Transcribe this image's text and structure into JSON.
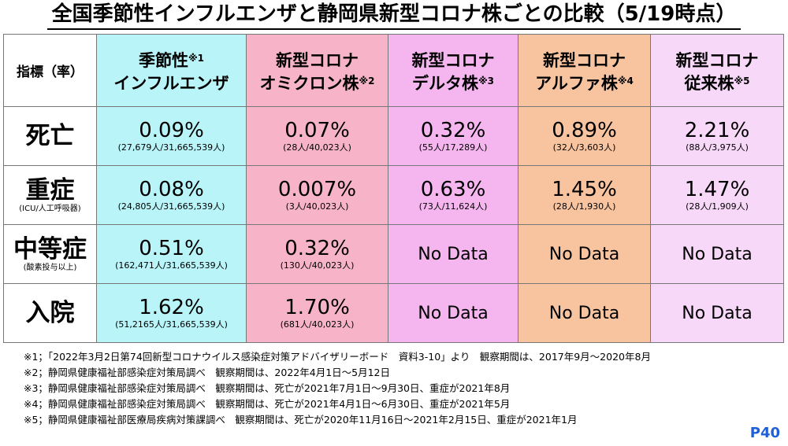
{
  "title": "全国季節性インフルエンザと静岡県新型コロナ株ごとの比較（5/19時点）",
  "colors": {
    "influenza": "#b8f4f8",
    "omicron": "#f7b4c8",
    "delta": "#f5b6f0",
    "alpha": "#f8c4a0",
    "conventional": "#f8d8f8",
    "header_white": "#ffffff",
    "page_number": "#1f5fd8"
  },
  "table": {
    "corner": "指標（率）",
    "columns": [
      {
        "line1": "季節性",
        "sup1": "※1",
        "line2": "インフルエンザ",
        "sup2": ""
      },
      {
        "line1": "新型コロナ",
        "sup1": "",
        "line2": "オミクロン株",
        "sup2": "※2"
      },
      {
        "line1": "新型コロナ",
        "sup1": "",
        "line2": "デルタ株",
        "sup2": "※3"
      },
      {
        "line1": "新型コロナ",
        "sup1": "",
        "line2": "アルファ株",
        "sup2": "※4"
      },
      {
        "line1": "新型コロナ",
        "sup1": "",
        "line2": "従来株",
        "sup2": "※5"
      }
    ],
    "rows": [
      {
        "label": "死亡",
        "sublabel": "",
        "cells": [
          {
            "value": "0.09%",
            "detail": "(27,679人/31,665,539人)"
          },
          {
            "value": "0.07%",
            "detail": "(28人/40,023人)"
          },
          {
            "value": "0.32%",
            "detail": "(55人/17,289人)"
          },
          {
            "value": "0.89%",
            "detail": "(32人/3,603人)"
          },
          {
            "value": "2.21%",
            "detail": "(88人/3,975人)"
          }
        ]
      },
      {
        "label": "重症",
        "sublabel": "(ICU/人工呼吸器)",
        "cells": [
          {
            "value": "0.08%",
            "detail": "(24,805人/31,665,539人)"
          },
          {
            "value": "0.007%",
            "detail": "(3人/40,023人)"
          },
          {
            "value": "0.63%",
            "detail": "(73人/11,624人)"
          },
          {
            "value": "1.45%",
            "detail": "(28人/1,930人)"
          },
          {
            "value": "1.47%",
            "detail": "(28人/1,909人)"
          }
        ]
      },
      {
        "label": "中等症",
        "sublabel": "(酸素投与以上)",
        "cells": [
          {
            "value": "0.51%",
            "detail": "(162,471人/31,665,539人)"
          },
          {
            "value": "0.32%",
            "detail": "(130人/40,023人)"
          },
          {
            "value": "No Data",
            "detail": ""
          },
          {
            "value": "No Data",
            "detail": ""
          },
          {
            "value": "No Data",
            "detail": ""
          }
        ]
      },
      {
        "label": "入院",
        "sublabel": "",
        "cells": [
          {
            "value": "1.62%",
            "detail": "(51,2165人/31,665,539人)"
          },
          {
            "value": "1.70%",
            "detail": "(681人/40,023人)"
          },
          {
            "value": "No Data",
            "detail": ""
          },
          {
            "value": "No Data",
            "detail": ""
          },
          {
            "value": "No Data",
            "detail": ""
          }
        ]
      }
    ]
  },
  "notes": [
    "※1；「2022年3月2日第74回新型コロナウイルス感染症対策アドバイザリーボード　資料3-10」より　観察期間は、2017年9月～2020年8月",
    "※2；静岡県健康福祉部感染症対策局調べ　観察期間は、2022年4月1日～5月12日",
    "※3；静岡県健康福祉部感染症対策局調べ　観察期間は、死亡が2021年7月1日～9月30日、重症が2021年8月",
    "※4；静岡県健康福祉部感染症対策局調べ　観察期間は、死亡が2021年4月1日～6月30日、重症が2021年5月",
    "※5；静岡県健康福祉部医療局疾病対策課調べ　観察期間は、死亡が2020年11月16日～2021年2月15日、重症が2021年1月"
  ],
  "page_number": "P40"
}
